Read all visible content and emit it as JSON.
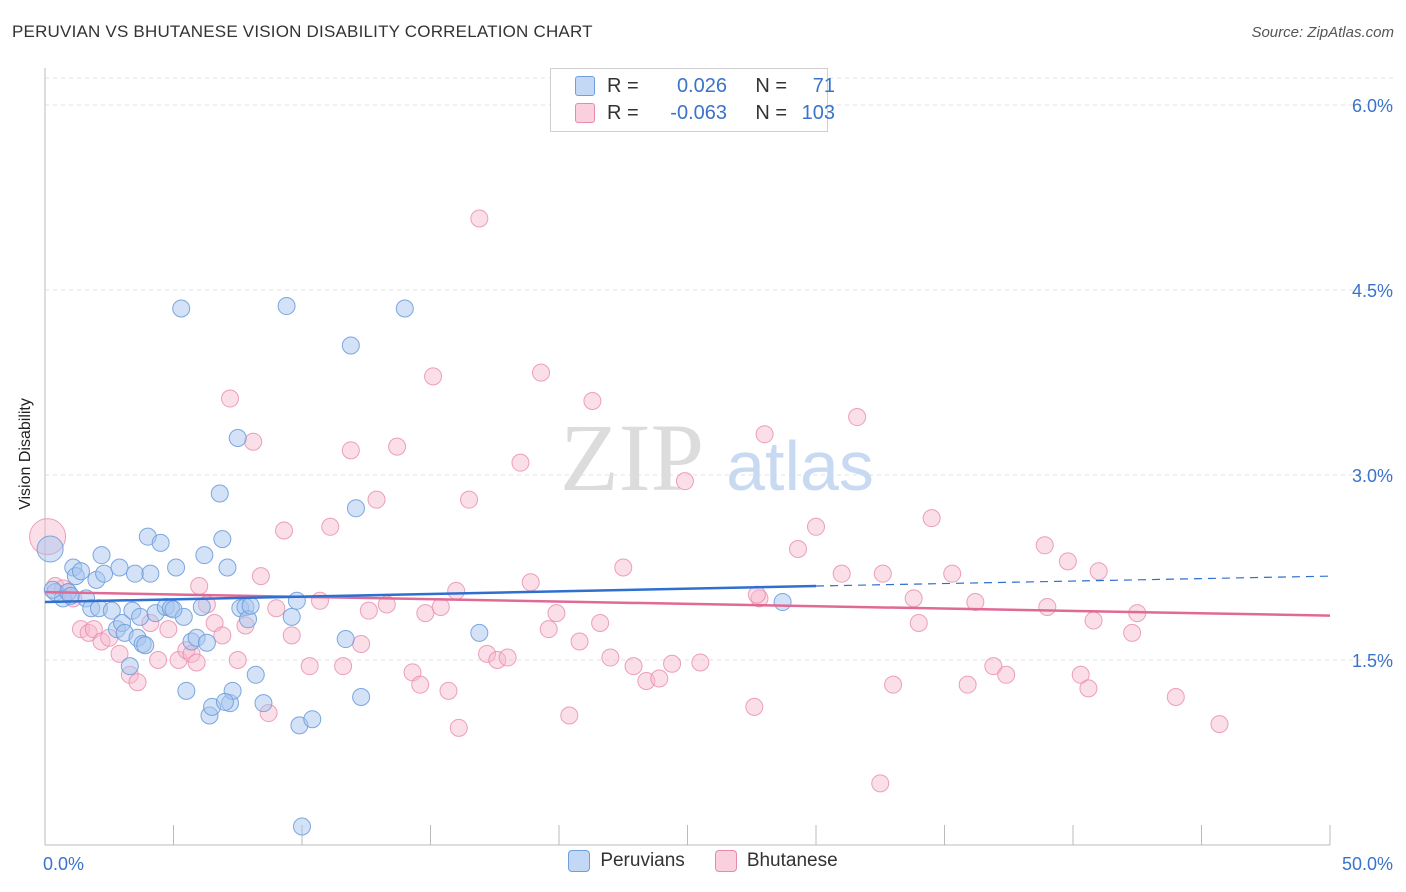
{
  "header": {
    "title": "PERUVIAN VS BHUTANESE VISION DISABILITY CORRELATION CHART",
    "source": "Source: ZipAtlas.com"
  },
  "watermark": {
    "zip": "ZIP",
    "atlas": "atlas"
  },
  "legend": {
    "rows": [
      {
        "r_label": "R =",
        "r_value": "0.026",
        "n_label": "N =",
        "n_value": "71",
        "color": "#a8c6f0"
      },
      {
        "r_label": "R =",
        "r_value": "-0.063",
        "n_label": "N =",
        "n_value": "103",
        "color": "#f6b8cd"
      }
    ]
  },
  "bottom_legend": {
    "peruvians": "Peruvians",
    "bhutanese": "Bhutanese"
  },
  "colors": {
    "peruvians_fill": "#a8c6f0",
    "peruvians_stroke": "#6f9fdc",
    "peruvians_line": "#2f6fd0",
    "bhutanese_fill": "#f6b8cd",
    "bhutanese_stroke": "#e88aaa",
    "bhutanese_line": "#e06a96",
    "axis_text": "#3a73c9"
  },
  "chart_data": {
    "type": "scatter",
    "title": "PERUVIAN VS BHUTANESE VISION DISABILITY CORRELATION CHART",
    "xlabel": "",
    "ylabel": "Vision Disability",
    "xlim": [
      0,
      50
    ],
    "ylim": [
      0,
      6.3
    ],
    "x_tick_labels": [
      "0.0%",
      "50.0%"
    ],
    "y_ticks": [
      1.5,
      3.0,
      4.5,
      6.0
    ],
    "y_tick_labels": [
      "1.5%",
      "3.0%",
      "4.5%",
      "6.0%"
    ],
    "grid": "horizontal dashed",
    "legend_placement": "top-center",
    "series": [
      {
        "name": "Peruvians",
        "r": 0.026,
        "n": 71,
        "trend": {
          "x": [
            0,
            30,
            50
          ],
          "y": [
            1.97,
            2.1,
            2.18
          ],
          "solid_until": 30
        },
        "points": [
          [
            0.2,
            2.4
          ],
          [
            0.4,
            2.05
          ],
          [
            0.7,
            2.0
          ],
          [
            0.9,
            2.05
          ],
          [
            1.1,
            2.25
          ],
          [
            1.2,
            2.18
          ],
          [
            1.4,
            2.22
          ],
          [
            1.6,
            2.0
          ],
          [
            1.8,
            1.92
          ],
          [
            2.0,
            2.15
          ],
          [
            2.1,
            1.92
          ],
          [
            2.2,
            2.35
          ],
          [
            2.3,
            2.2
          ],
          [
            2.6,
            1.9
          ],
          [
            2.8,
            1.75
          ],
          [
            2.9,
            2.25
          ],
          [
            3.0,
            1.8
          ],
          [
            3.1,
            1.72
          ],
          [
            3.3,
            1.45
          ],
          [
            3.4,
            1.9
          ],
          [
            3.5,
            2.2
          ],
          [
            3.6,
            1.68
          ],
          [
            3.7,
            1.85
          ],
          [
            3.8,
            1.63
          ],
          [
            4.0,
            2.5
          ],
          [
            4.1,
            2.2
          ],
          [
            4.3,
            1.88
          ],
          [
            4.5,
            2.45
          ],
          [
            4.7,
            1.93
          ],
          [
            4.9,
            1.92
          ],
          [
            5.1,
            2.25
          ],
          [
            5.3,
            4.35
          ],
          [
            5.4,
            1.85
          ],
          [
            5.5,
            1.25
          ],
          [
            5.7,
            1.65
          ],
          [
            5.9,
            1.68
          ],
          [
            6.1,
            1.93
          ],
          [
            6.2,
            2.35
          ],
          [
            6.4,
            1.05
          ],
          [
            6.5,
            1.12
          ],
          [
            6.8,
            2.85
          ],
          [
            6.9,
            2.48
          ],
          [
            7.1,
            2.25
          ],
          [
            7.2,
            1.15
          ],
          [
            7.3,
            1.25
          ],
          [
            7.5,
            3.3
          ],
          [
            7.6,
            1.92
          ],
          [
            7.8,
            1.93
          ],
          [
            7.9,
            1.83
          ],
          [
            8.2,
            1.38
          ],
          [
            8.5,
            1.15
          ],
          [
            9.4,
            4.37
          ],
          [
            9.6,
            1.85
          ],
          [
            9.8,
            1.98
          ],
          [
            9.9,
            0.97
          ],
          [
            10.0,
            0.15
          ],
          [
            10.4,
            1.02
          ],
          [
            11.7,
            1.67
          ],
          [
            11.9,
            4.05
          ],
          [
            12.1,
            2.73
          ],
          [
            12.3,
            1.2
          ],
          [
            14.0,
            4.35
          ],
          [
            16.9,
            1.72
          ],
          [
            28.7,
            1.97
          ],
          [
            0.3,
            2.07
          ],
          [
            1.0,
            2.02
          ],
          [
            3.9,
            1.62
          ],
          [
            5.0,
            1.91
          ],
          [
            7.0,
            1.16
          ],
          [
            8.0,
            1.94
          ],
          [
            6.3,
            1.64
          ]
        ]
      },
      {
        "name": "Bhutanese",
        "r": -0.063,
        "n": 103,
        "trend": {
          "x": [
            0,
            50
          ],
          "y": [
            2.05,
            1.86
          ]
        },
        "points": [
          [
            0.1,
            2.5
          ],
          [
            0.4,
            2.1
          ],
          [
            0.7,
            2.08
          ],
          [
            0.9,
            2.05
          ],
          [
            1.1,
            2.0
          ],
          [
            1.4,
            1.75
          ],
          [
            1.7,
            1.72
          ],
          [
            1.9,
            1.75
          ],
          [
            2.2,
            1.65
          ],
          [
            2.5,
            1.68
          ],
          [
            2.9,
            1.55
          ],
          [
            3.3,
            1.38
          ],
          [
            3.6,
            1.32
          ],
          [
            4.1,
            1.8
          ],
          [
            4.4,
            1.5
          ],
          [
            4.8,
            1.75
          ],
          [
            5.2,
            1.5
          ],
          [
            5.5,
            1.58
          ],
          [
            5.7,
            1.55
          ],
          [
            6.0,
            2.1
          ],
          [
            6.3,
            1.95
          ],
          [
            6.6,
            1.8
          ],
          [
            6.9,
            1.7
          ],
          [
            7.2,
            3.62
          ],
          [
            7.5,
            1.5
          ],
          [
            7.8,
            1.78
          ],
          [
            8.1,
            3.27
          ],
          [
            8.4,
            2.18
          ],
          [
            8.7,
            1.07
          ],
          [
            9.3,
            2.55
          ],
          [
            9.6,
            1.7
          ],
          [
            10.3,
            1.45
          ],
          [
            10.7,
            1.98
          ],
          [
            11.1,
            2.58
          ],
          [
            11.6,
            1.45
          ],
          [
            11.9,
            3.2
          ],
          [
            12.3,
            1.63
          ],
          [
            12.6,
            1.9
          ],
          [
            12.9,
            2.8
          ],
          [
            13.3,
            1.95
          ],
          [
            13.7,
            3.23
          ],
          [
            14.3,
            1.4
          ],
          [
            14.6,
            1.3
          ],
          [
            14.8,
            1.88
          ],
          [
            15.1,
            3.8
          ],
          [
            15.4,
            1.93
          ],
          [
            15.7,
            1.25
          ],
          [
            16.1,
            0.95
          ],
          [
            16.5,
            2.8
          ],
          [
            16.9,
            5.08
          ],
          [
            17.2,
            1.55
          ],
          [
            17.6,
            1.5
          ],
          [
            18.0,
            1.52
          ],
          [
            18.5,
            3.1
          ],
          [
            18.9,
            2.13
          ],
          [
            19.3,
            3.83
          ],
          [
            19.6,
            1.75
          ],
          [
            19.9,
            1.88
          ],
          [
            20.4,
            1.05
          ],
          [
            20.8,
            1.65
          ],
          [
            21.3,
            3.6
          ],
          [
            21.6,
            1.8
          ],
          [
            22.0,
            1.52
          ],
          [
            22.5,
            2.25
          ],
          [
            22.9,
            1.45
          ],
          [
            23.4,
            1.33
          ],
          [
            23.9,
            1.35
          ],
          [
            24.4,
            1.47
          ],
          [
            24.9,
            2.95
          ],
          [
            25.5,
            1.48
          ],
          [
            27.6,
            1.12
          ],
          [
            27.8,
            2.0
          ],
          [
            28.0,
            3.33
          ],
          [
            29.3,
            2.4
          ],
          [
            30.0,
            2.58
          ],
          [
            31.0,
            2.2
          ],
          [
            31.6,
            3.47
          ],
          [
            32.6,
            2.2
          ],
          [
            33.0,
            1.3
          ],
          [
            33.8,
            2.0
          ],
          [
            34.0,
            1.8
          ],
          [
            34.5,
            2.65
          ],
          [
            35.3,
            2.2
          ],
          [
            35.9,
            1.3
          ],
          [
            36.2,
            1.97
          ],
          [
            36.9,
            1.45
          ],
          [
            37.4,
            1.38
          ],
          [
            38.9,
            2.43
          ],
          [
            39.0,
            1.93
          ],
          [
            39.8,
            2.3
          ],
          [
            40.3,
            1.38
          ],
          [
            40.6,
            1.27
          ],
          [
            40.8,
            1.82
          ],
          [
            41.0,
            2.22
          ],
          [
            42.3,
            1.72
          ],
          [
            42.5,
            1.88
          ],
          [
            44.0,
            1.2
          ],
          [
            45.7,
            0.98
          ],
          [
            32.5,
            0.5
          ],
          [
            27.7,
            2.03
          ],
          [
            16.0,
            2.06
          ],
          [
            9.0,
            1.92
          ],
          [
            5.9,
            1.48
          ]
        ]
      }
    ]
  }
}
